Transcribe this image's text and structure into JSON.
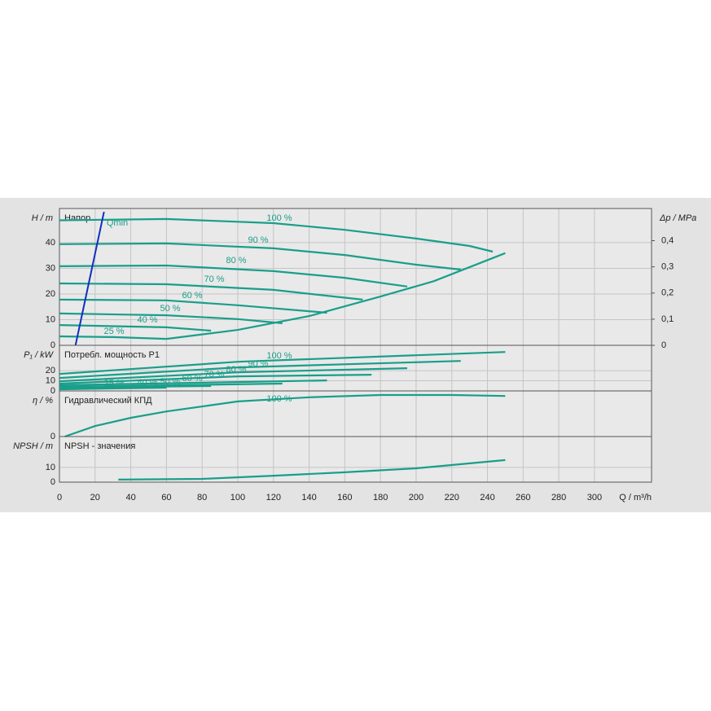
{
  "chart_data": [
    {
      "type": "line",
      "title": "Напор",
      "ylabel": "H / m",
      "y2label": "Δp / MPa",
      "ylim": [
        0,
        53.3
      ],
      "yticks": [
        0,
        10,
        20,
        30,
        40
      ],
      "y2lim": [
        0,
        0.523
      ],
      "y2ticks": [
        0,
        {
          "value": 0.1,
          "label": "0,1"
        },
        {
          "value": 0.2,
          "label": "0,2"
        },
        {
          "value": 0.3,
          "label": "0,3"
        },
        {
          "value": 0.4,
          "label": "0,4"
        }
      ],
      "series": [
        {
          "name": "100 %",
          "color": "#1a9e8a",
          "x": [
            0,
            60,
            120,
            160,
            200,
            230,
            243
          ],
          "values": [
            48.7,
            49.2,
            47.6,
            45,
            41.6,
            38.7,
            36.5
          ]
        },
        {
          "name": "90 %",
          "color": "#1a9e8a",
          "x": [
            0,
            60,
            120,
            160,
            200,
            225
          ],
          "values": [
            39.4,
            39.7,
            37.8,
            35.2,
            31.4,
            29.5
          ]
        },
        {
          "name": "80 %",
          "color": "#1a9e8a",
          "x": [
            0,
            60,
            120,
            160,
            195
          ],
          "values": [
            30.8,
            31.1,
            28.9,
            26.3,
            22.9
          ]
        },
        {
          "name": "70 %",
          "color": "#1a9e8a",
          "x": [
            0,
            60,
            120,
            170
          ],
          "values": [
            24.1,
            23.8,
            21.6,
            17.8
          ]
        },
        {
          "name": "60 %",
          "color": "#1a9e8a",
          "x": [
            0,
            60,
            100,
            150
          ],
          "values": [
            17.8,
            17.5,
            15.6,
            12.7
          ]
        },
        {
          "name": "50 %",
          "color": "#1a9e8a",
          "x": [
            0,
            60,
            100,
            125
          ],
          "values": [
            12.4,
            11.7,
            10.2,
            8.6
          ]
        },
        {
          "name": "40 %",
          "color": "#1a9e8a",
          "x": [
            0,
            60,
            85
          ],
          "values": [
            7.9,
            7.0,
            5.7
          ]
        },
        {
          "name": "25 %",
          "color": "#1a9e8a",
          "x": [
            0,
            30,
            60
          ],
          "values": [
            3.5,
            3.2,
            2.5
          ]
        },
        {
          "name": "Qmin",
          "color": "#1030c0",
          "x": [
            9,
            25
          ],
          "values": [
            0,
            52
          ]
        },
        {
          "color": "#1a9e8a",
          "x": [
            60,
            100,
            140,
            180,
            210,
            250
          ],
          "values": [
            2.5,
            6,
            11.4,
            19,
            25,
            35.9
          ]
        }
      ]
    },
    {
      "type": "line",
      "title": "Потребл. мощность P1",
      "ylabel": "P₁ / kW",
      "ylim": [
        0,
        45
      ],
      "yticks": [
        0,
        10,
        20
      ],
      "series": [
        {
          "color": "#1a9e8a",
          "x": [
            0,
            100,
            200,
            250
          ],
          "values": [
            16.8,
            28.8,
            35.2,
            38.4
          ]
        },
        {
          "color": "#1a9e8a",
          "x": [
            0,
            100,
            225
          ],
          "values": [
            12.8,
            23.2,
            29.6
          ]
        },
        {
          "color": "#1a9e8a",
          "x": [
            0,
            100,
            195
          ],
          "values": [
            9.6,
            18.4,
            22.4
          ]
        },
        {
          "color": "#1a9e8a",
          "x": [
            0,
            100,
            175
          ],
          "values": [
            7.2,
            14.4,
            16
          ]
        },
        {
          "color": "#1a9e8a",
          "x": [
            0,
            150
          ],
          "values": [
            5.6,
            10.4
          ]
        },
        {
          "color": "#1a9e8a",
          "x": [
            0,
            125
          ],
          "values": [
            4,
            7.2
          ]
        },
        {
          "color": "#1a9e8a",
          "x": [
            0,
            85
          ],
          "values": [
            3.2,
            4.8
          ]
        },
        {
          "color": "#1a9e8a",
          "x": [
            0,
            60
          ],
          "values": [
            1.6,
            3.2
          ]
        }
      ]
    },
    {
      "type": "line",
      "title": "Гидравлический КПД",
      "ylabel": "η / %",
      "ylim": [
        0,
        100
      ],
      "yticks": [
        0
      ],
      "series": [
        {
          "color": "#1a9e8a",
          "x": [
            3,
            20,
            40,
            60,
            100,
            140,
            180,
            220,
            250
          ],
          "values": [
            0,
            23,
            41,
            55,
            77,
            86,
            91,
            91,
            89
          ]
        }
      ]
    },
    {
      "type": "line",
      "title": "NPSH - значения",
      "ylabel": "NPSH / m",
      "xlabel": "Q / m³/h",
      "ylim": [
        0,
        31
      ],
      "yticks": [
        0,
        10
      ],
      "xlim": [
        0,
        332
      ],
      "xticks": [
        0,
        20,
        40,
        60,
        80,
        100,
        120,
        140,
        160,
        180,
        200,
        220,
        240,
        260,
        280,
        300
      ],
      "series": [
        {
          "color": "#1a9e8a",
          "x": [
            33,
            80,
            120,
            160,
            200,
            250
          ],
          "values": [
            1.7,
            2.2,
            4.4,
            6.7,
            9.4,
            15
          ]
        }
      ]
    }
  ]
}
